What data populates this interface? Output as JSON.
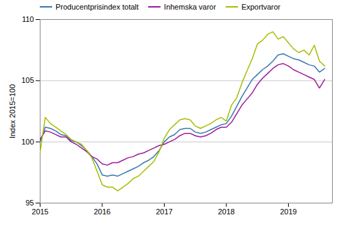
{
  "chart_data": {
    "type": "line",
    "ylabel": "Index 2015=100",
    "xlim": [
      2015.0,
      2019.708
    ],
    "ylim": [
      95,
      110
    ],
    "xticks": [
      2015,
      2016,
      2017,
      2018,
      2019
    ],
    "yticks": [
      95,
      100,
      105,
      110
    ],
    "grid": true,
    "legend": "upper left",
    "x": [
      2015.0,
      2015.083,
      2015.167,
      2015.25,
      2015.333,
      2015.417,
      2015.5,
      2015.583,
      2015.667,
      2015.75,
      2015.833,
      2015.917,
      2016.0,
      2016.083,
      2016.167,
      2016.25,
      2016.333,
      2016.417,
      2016.5,
      2016.583,
      2016.667,
      2016.75,
      2016.833,
      2016.917,
      2017.0,
      2017.083,
      2017.167,
      2017.25,
      2017.333,
      2017.417,
      2017.5,
      2017.583,
      2017.667,
      2017.75,
      2017.833,
      2017.917,
      2018.0,
      2018.083,
      2018.167,
      2018.25,
      2018.333,
      2018.417,
      2018.5,
      2018.583,
      2018.667,
      2018.75,
      2018.833,
      2018.917,
      2019.0,
      2019.083,
      2019.167,
      2019.25,
      2019.333,
      2019.417,
      2019.5,
      2019.583
    ],
    "series": [
      {
        "name": "Producentprisindex totalt",
        "color": "#3777b0",
        "values": [
          100.0,
          101.2,
          101.1,
          100.9,
          100.6,
          100.5,
          100.1,
          100.0,
          99.7,
          99.3,
          98.8,
          98.2,
          97.3,
          97.2,
          97.3,
          97.2,
          97.4,
          97.6,
          97.8,
          98.0,
          98.3,
          98.5,
          98.8,
          99.3,
          100.0,
          100.4,
          100.6,
          101.0,
          101.1,
          101.1,
          100.8,
          100.7,
          100.8,
          101.0,
          101.2,
          101.4,
          101.5,
          102.1,
          102.9,
          103.7,
          104.4,
          105.1,
          105.5,
          105.9,
          106.2,
          106.6,
          107.1,
          107.2,
          107.0,
          106.8,
          106.7,
          106.5,
          106.3,
          106.2,
          105.7,
          106.0
        ]
      },
      {
        "name": "Inhemska varor",
        "color": "#9b1b9b",
        "values": [
          100.2,
          100.9,
          100.8,
          100.6,
          100.4,
          100.4,
          100.0,
          99.8,
          99.5,
          99.2,
          98.8,
          98.6,
          98.2,
          98.1,
          98.3,
          98.3,
          98.5,
          98.7,
          98.8,
          99.0,
          99.1,
          99.3,
          99.5,
          99.7,
          99.8,
          100.0,
          100.2,
          100.5,
          100.7,
          100.7,
          100.5,
          100.4,
          100.5,
          100.7,
          101.0,
          101.2,
          101.2,
          101.6,
          102.3,
          103.0,
          103.5,
          104.0,
          104.7,
          105.2,
          105.6,
          106.0,
          106.3,
          106.4,
          106.2,
          105.9,
          105.7,
          105.5,
          105.3,
          105.1,
          104.4,
          105.1
        ]
      },
      {
        "name": "Exportvaror",
        "color": "#a8bc00",
        "values": [
          99.2,
          102.0,
          101.5,
          101.2,
          100.9,
          100.6,
          100.2,
          100.0,
          99.8,
          99.3,
          98.7,
          97.6,
          96.5,
          96.3,
          96.3,
          96.0,
          96.3,
          96.6,
          97.0,
          97.2,
          97.6,
          98.0,
          98.4,
          99.2,
          100.3,
          101.0,
          101.4,
          101.8,
          101.9,
          101.8,
          101.3,
          101.1,
          101.3,
          101.5,
          101.8,
          102.0,
          101.7,
          103.0,
          103.6,
          104.8,
          105.8,
          106.8,
          108.0,
          108.3,
          108.8,
          109.0,
          108.4,
          108.6,
          108.1,
          107.6,
          107.3,
          107.5,
          107.1,
          107.9,
          106.6,
          106.2
        ]
      }
    ]
  }
}
